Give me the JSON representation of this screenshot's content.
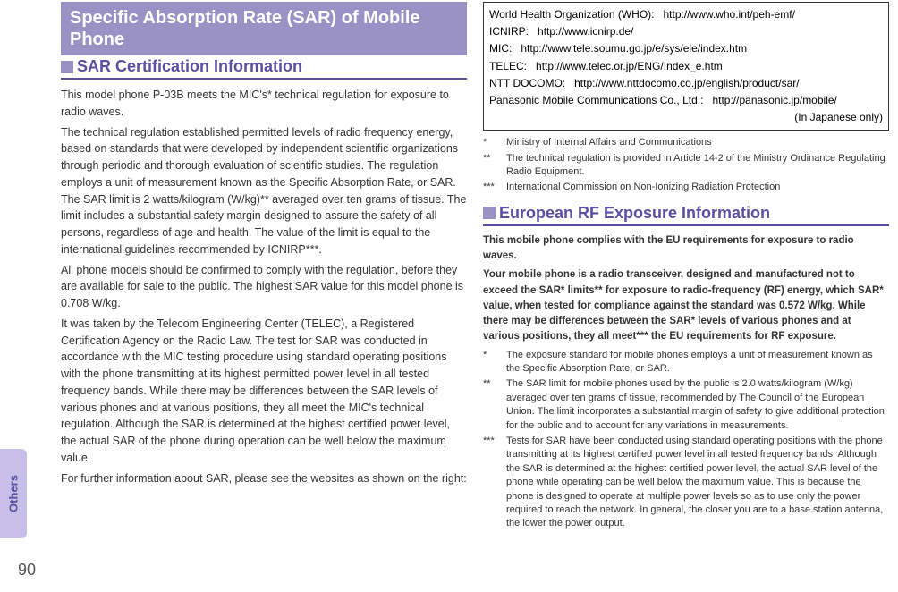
{
  "sidebar": {
    "tab_label": "Others",
    "page_number": "90"
  },
  "left": {
    "banner": "Specific Absorption Rate (SAR) of Mobile Phone",
    "h2": "SAR Certification Information",
    "p1": "This model phone P-03B meets the MIC's* technical regulation for exposure to radio waves.",
    "p2": "The technical regulation established permitted levels of radio frequency energy, based on standards that were developed by independent scientific organizations through periodic and thorough evaluation of scientific studies. The regulation employs a unit of measurement known as the Specific Absorption Rate, or SAR. The SAR limit is 2 watts/kilogram (W/kg)** averaged over ten grams of tissue. The limit includes a substantial safety margin designed to assure the safety of all persons, regardless of age and health. The value of the limit is equal to the international guidelines recommended by ICNIRP***.",
    "p3": "All phone models should be confirmed to comply with the regulation, before they are available for sale to the public. The highest SAR value for this model phone is 0.708 W/kg.",
    "p4": "It was taken by the Telecom Engineering Center (TELEC), a Registered Certification Agency on the Radio Law. The test for SAR was conducted in accordance with the MIC testing procedure using standard operating positions with the phone transmitting at its highest permitted power level in all tested frequency bands. While there may be differences between the SAR levels of various phones and at various positions, they all meet the MIC's technical regulation. Although the SAR is determined at the highest certified power level, the actual SAR of the phone during operation can be well below the maximum value.",
    "p5": "For further information about SAR, please see the websites as shown on the right:"
  },
  "right": {
    "links": [
      {
        "label": "World Health Organization (WHO):",
        "url": "http://www.who.int/peh-emf/"
      },
      {
        "label": "ICNIRP:",
        "url": "http://www.icnirp.de/"
      },
      {
        "label": "MIC:",
        "url": "http://www.tele.soumu.go.jp/e/sys/ele/index.htm"
      },
      {
        "label": "TELEC:",
        "url": "http://www.telec.or.jp/ENG/Index_e.htm"
      },
      {
        "label": "NTT DOCOMO:",
        "url": "http://www.nttdocomo.co.jp/english/product/sar/"
      },
      {
        "label": "Panasonic Mobile Communications Co., Ltd.:",
        "url": "http://panasonic.jp/mobile/"
      }
    ],
    "jp_only": "(In Japanese only)",
    "footnotes1": [
      {
        "mark": "*",
        "text": "Ministry of Internal Affairs and Communications"
      },
      {
        "mark": "**",
        "text": "The technical regulation is provided in Article 14-2 of the Ministry Ordinance Regulating Radio Equipment."
      },
      {
        "mark": "***",
        "text": "International Commission on Non-Ionizing Radiation Protection"
      }
    ],
    "h2": "European RF Exposure Information",
    "eu_p1": "This mobile phone complies with the EU requirements for exposure to radio waves.",
    "eu_p2": "Your mobile phone is a radio transceiver, designed and manufactured not to exceed the SAR* limits** for exposure to radio-frequency (RF) energy, which SAR* value, when tested for compliance against the standard was 0.572 W/kg. While there may be differences between the SAR* levels of various phones and at various positions, they all meet*** the EU requirements for RF exposure.",
    "footnotes2": [
      {
        "mark": "*",
        "text": "The exposure standard for mobile phones employs a unit of measurement known as the Specific Absorption Rate, or SAR."
      },
      {
        "mark": "**",
        "text": "The SAR limit for mobile phones used by the public is 2.0 watts/kilogram (W/kg) averaged over ten grams of tissue, recommended by The Council of the European Union. The limit incorporates a substantial margin of safety to give additional protection for the public and to account for any variations in measurements."
      },
      {
        "mark": "***",
        "text": "Tests for SAR have been conducted using standard operating positions with the phone transmitting at its highest certified power level in all tested frequency bands. Although the SAR is determined at the highest certified power level, the actual SAR level of the phone while operating can be well below the maximum value. This is because the phone is designed to operate at multiple power levels so as to use only the power required to reach the network. In general, the closer you are to a base station antenna, the lower the power output."
      }
    ]
  }
}
